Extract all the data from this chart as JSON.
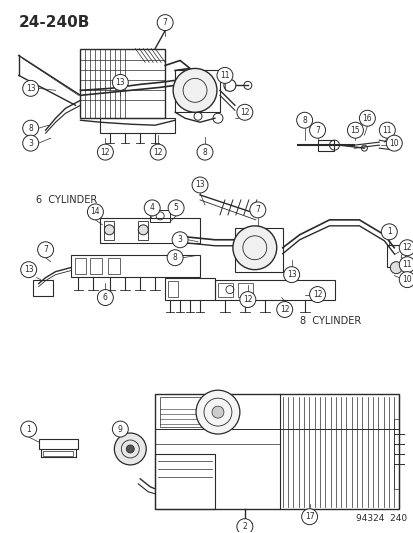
{
  "bg_color": "#ffffff",
  "line_color": "#2a2a2a",
  "text_color": "#2a2a2a",
  "fig_width": 4.14,
  "fig_height": 5.33,
  "dpi": 100,
  "title": "24-240B",
  "label_6cyl": "6  CYLINDER",
  "label_8cyl": "8  CYLINDER",
  "footer_code": "94324  240"
}
